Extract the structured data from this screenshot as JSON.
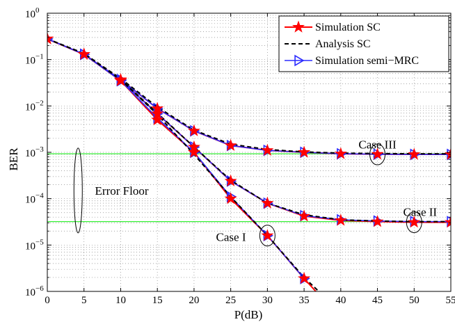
{
  "chart_data": {
    "type": "line",
    "xlabel": "P(dB)",
    "ylabel": "BER",
    "xlim": [
      0,
      55
    ],
    "ylim_log10": [
      -6,
      0
    ],
    "y_scale": "log",
    "grid": true,
    "x_ticks": [
      "0",
      "5",
      "10",
      "15",
      "20",
      "25",
      "30",
      "35",
      "40",
      "45",
      "50",
      "55"
    ],
    "y_ticks": [
      {
        "base": "10",
        "exp": "−6"
      },
      {
        "base": "10",
        "exp": "−5"
      },
      {
        "base": "10",
        "exp": "−4"
      },
      {
        "base": "10",
        "exp": "−3"
      },
      {
        "base": "10",
        "exp": "−2"
      },
      {
        "base": "10",
        "exp": "−1"
      },
      {
        "base": "10",
        "exp": "0"
      }
    ],
    "legend": {
      "position": "top-right",
      "entries": [
        "Simulation SC",
        "Analysis SC",
        "Simulation semi−MRC"
      ]
    },
    "colors": {
      "sim_sc": "#ff0000",
      "analysis": "#000000",
      "semi_mrc": "#2b2bff",
      "floor": "#33ee33"
    },
    "series": [
      {
        "name": "Simulation SC (Case I)",
        "style": "sim_sc",
        "x": [
          0,
          5,
          10,
          15,
          20,
          25,
          30,
          35,
          36.6
        ],
        "y": [
          0.28,
          0.13,
          0.035,
          0.005,
          0.001,
          0.0001,
          1.6e-05,
          1.9e-06,
          1e-06
        ]
      },
      {
        "name": "Analysis SC (Case I)",
        "style": "analysis",
        "x": [
          0,
          5,
          10,
          15,
          20,
          25,
          30,
          35,
          37
        ],
        "y": [
          0.28,
          0.135,
          0.037,
          0.0065,
          0.0009,
          0.00011,
          1.6e-05,
          2e-06,
          1e-06
        ]
      },
      {
        "name": "Simulation semi−MRC (Case I)",
        "style": "semi_mrc",
        "x": [
          0,
          5,
          10,
          15,
          20,
          25,
          30,
          35
        ],
        "y": [
          0.28,
          0.13,
          0.035,
          0.0055,
          0.001,
          0.00011,
          1.6e-05,
          1.9e-06
        ]
      },
      {
        "name": "Simulation SC (Case II)",
        "style": "sim_sc",
        "x": [
          0,
          5,
          10,
          15,
          20,
          25,
          30,
          35,
          40,
          45,
          50,
          55
        ],
        "y": [
          0.28,
          0.13,
          0.036,
          0.0068,
          0.0013,
          0.00024,
          8e-05,
          4.2e-05,
          3.4e-05,
          3.2e-05,
          3.1e-05,
          3.1e-05
        ]
      },
      {
        "name": "Analysis SC (Case II)",
        "style": "analysis",
        "x": [
          0,
          5,
          10,
          15,
          20,
          25,
          30,
          35,
          40,
          45,
          50,
          55
        ],
        "y": [
          0.28,
          0.135,
          0.037,
          0.007,
          0.0013,
          0.00025,
          8e-05,
          4.5e-05,
          3.5e-05,
          3.3e-05,
          3.2e-05,
          3.2e-05
        ]
      },
      {
        "name": "Simulation semi−MRC (Case II)",
        "style": "semi_mrc",
        "x": [
          0,
          5,
          10,
          15,
          20,
          25,
          30,
          35,
          40,
          45,
          50,
          55
        ],
        "y": [
          0.28,
          0.13,
          0.036,
          0.0068,
          0.0013,
          0.00024,
          8e-05,
          4.3e-05,
          3.5e-05,
          3.3e-05,
          3.2e-05,
          3.2e-05
        ]
      },
      {
        "name": "Simulation SC (Case III)",
        "style": "sim_sc",
        "x": [
          0,
          5,
          10,
          15,
          20,
          25,
          30,
          35,
          40,
          45,
          50,
          55
        ],
        "y": [
          0.28,
          0.13,
          0.037,
          0.0088,
          0.0029,
          0.0014,
          0.0011,
          0.001,
          0.00093,
          0.00091,
          0.0009,
          0.0009
        ]
      },
      {
        "name": "Analysis SC (Case III)",
        "style": "analysis",
        "x": [
          0,
          5,
          10,
          15,
          20,
          25,
          30,
          35,
          40,
          45,
          50,
          55
        ],
        "y": [
          0.28,
          0.135,
          0.039,
          0.0095,
          0.003,
          0.0015,
          0.00115,
          0.00102,
          0.00096,
          0.00094,
          0.00093,
          0.00093
        ]
      },
      {
        "name": "Simulation semi−MRC (Case III)",
        "style": "semi_mrc",
        "x": [
          0,
          5,
          10,
          15,
          20,
          25,
          30,
          35,
          40,
          45,
          50,
          55
        ],
        "y": [
          0.28,
          0.13,
          0.037,
          0.0088,
          0.0029,
          0.0014,
          0.0011,
          0.001,
          0.00093,
          0.00091,
          0.0009,
          0.0009
        ]
      }
    ],
    "error_floors": [
      0.00093,
      3.2e-05
    ],
    "ellipses": [
      {
        "cx": 45,
        "cy": 0.0009
      },
      {
        "cx": 50,
        "cy": 3.1e-05
      },
      {
        "cx": 30,
        "cy": 1.6e-05
      },
      {
        "cx": 4.2,
        "cy": 0.00015
      }
    ],
    "annotations": [
      {
        "text": "Case III",
        "x": 45,
        "y": 0.0015
      },
      {
        "text": "Case II",
        "x": 48.5,
        "y": 5.2e-05
      },
      {
        "text": "Case I",
        "x": 23,
        "y": 1.5e-05
      },
      {
        "text": "Error Floor",
        "x": 6.5,
        "y": 0.00015
      }
    ]
  }
}
